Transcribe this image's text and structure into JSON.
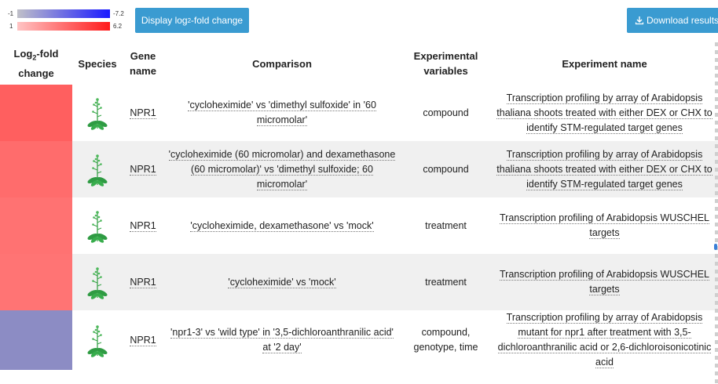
{
  "legend": {
    "blue_min": "-1",
    "blue_max": "-7.2",
    "red_min": "1",
    "red_max": "6.2"
  },
  "buttons": {
    "log2_prefix": "Display log",
    "log2_sub": "2",
    "log2_suffix": "-fold change",
    "download": "Download results"
  },
  "table": {
    "headers": {
      "fold_prefix": "Log",
      "fold_sub": "2",
      "fold_suffix": "-fold change",
      "species": "Species",
      "gene": "Gene name",
      "comparison": "Comparison",
      "variables": "Experimental variables",
      "experiment": "Experiment name"
    },
    "rows": [
      {
        "fold_color": "#ff5f5f",
        "species_icon": "arabidopsis-plant-icon",
        "gene": "NPR1",
        "comparison": "'cycloheximide' vs 'dimethyl sulfoxide' in '60 micromolar'",
        "variables": "compound",
        "experiment": "Transcription profiling by array of Arabidopsis thaliana shoots treated with either DEX or CHX to identify STM-regulated target genes"
      },
      {
        "fold_color": "#ff6c6c",
        "species_icon": "arabidopsis-plant-icon",
        "gene": "NPR1",
        "comparison": "'cycloheximide (60 micromolar) and dexamethasone (60 micromolar)' vs 'dimethyl sulfoxide; 60 micromolar'",
        "variables": "compound",
        "experiment": "Transcription profiling by array of Arabidopsis thaliana shoots treated with either DEX or CHX to identify STM-regulated target genes"
      },
      {
        "fold_color": "#ff7272",
        "species_icon": "arabidopsis-plant-icon",
        "gene": "NPR1",
        "comparison": "'cycloheximide, dexamethasone' vs 'mock'",
        "variables": "treatment",
        "experiment": "Transcription profiling of Arabidopsis WUSCHEL targets"
      },
      {
        "fold_color": "#ff7474",
        "species_icon": "arabidopsis-plant-icon",
        "gene": "NPR1",
        "comparison": "'cycloheximide' vs 'mock'",
        "variables": "treatment",
        "experiment": "Transcription profiling of Arabidopsis WUSCHEL targets"
      },
      {
        "fold_color": "#8c8cc4",
        "species_icon": "arabidopsis-plant-icon",
        "gene": "NPR1",
        "comparison": "'npr1-3' vs 'wild type' in '3,5-dichloroanthranilic acid' at '2 day'",
        "variables": "compound, genotype, time",
        "experiment": "Transcription profiling by array of Arabidopsis mutant for npr1 after treatment with 3,5-dichloroanthranilic acid or 2,6-dichloroisonicotinic acid"
      }
    ]
  }
}
